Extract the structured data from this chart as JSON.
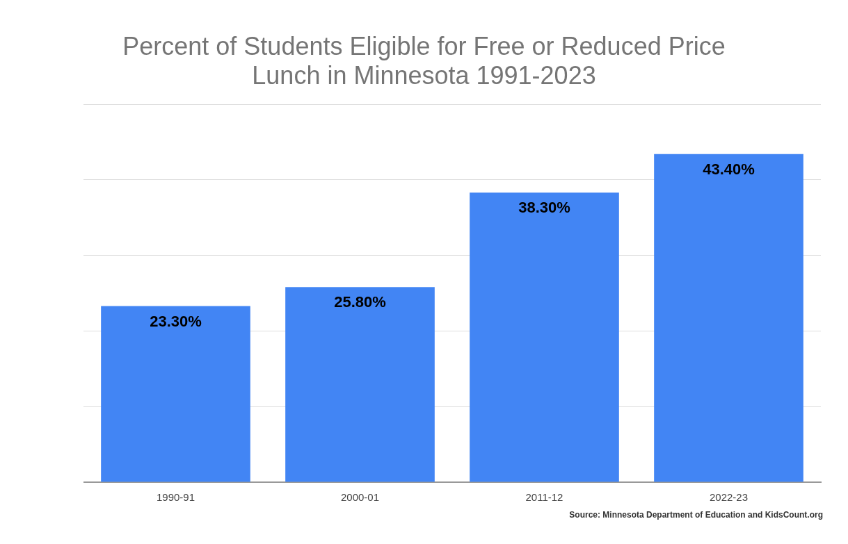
{
  "chart_data": {
    "type": "bar",
    "title": "Percent of Students Eligible for Free or Reduced Price Lunch in Minnesota 1991-2023",
    "categories": [
      "1990-91",
      "2000-01",
      "2011-12",
      "2022-23"
    ],
    "values": [
      23.3,
      25.8,
      38.3,
      43.4
    ],
    "value_labels": [
      "23.30%",
      "25.80%",
      "38.30%",
      "43.40%"
    ],
    "color": "#4285f4",
    "ylim": [
      0,
      50
    ],
    "yticks": [
      {
        "value": 0,
        "label": null
      },
      {
        "value": 10,
        "label": null
      },
      {
        "value": 20,
        "label": null
      },
      {
        "value": 30,
        "label": null
      },
      {
        "value": 40,
        "label": null
      },
      {
        "value": 50,
        "label": null
      }
    ],
    "tick_labels": "x",
    "grid": "y",
    "legend": false,
    "annotations": [
      "Source: Minnesota Department of Education and KidsCount.org"
    ]
  }
}
